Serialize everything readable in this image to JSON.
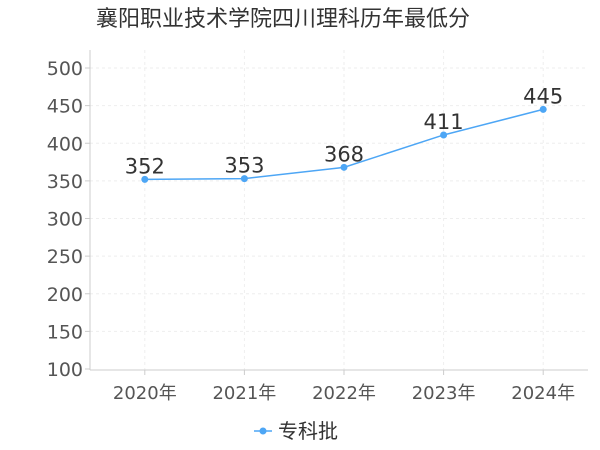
{
  "chart_data": {
    "type": "line",
    "title": "襄阳职业技术学院四川理科历年最低分",
    "categories": [
      "2020年",
      "2021年",
      "2022年",
      "2023年",
      "2024年"
    ],
    "series": [
      {
        "name": "专科批",
        "values": [
          352,
          353,
          368,
          411,
          445
        ],
        "color": "#4da6f5"
      }
    ],
    "ylim": [
      100,
      500
    ],
    "yticks": [
      100,
      150,
      200,
      250,
      300,
      350,
      400,
      450,
      500
    ],
    "grid": true,
    "legend_position": "bottom-center"
  }
}
